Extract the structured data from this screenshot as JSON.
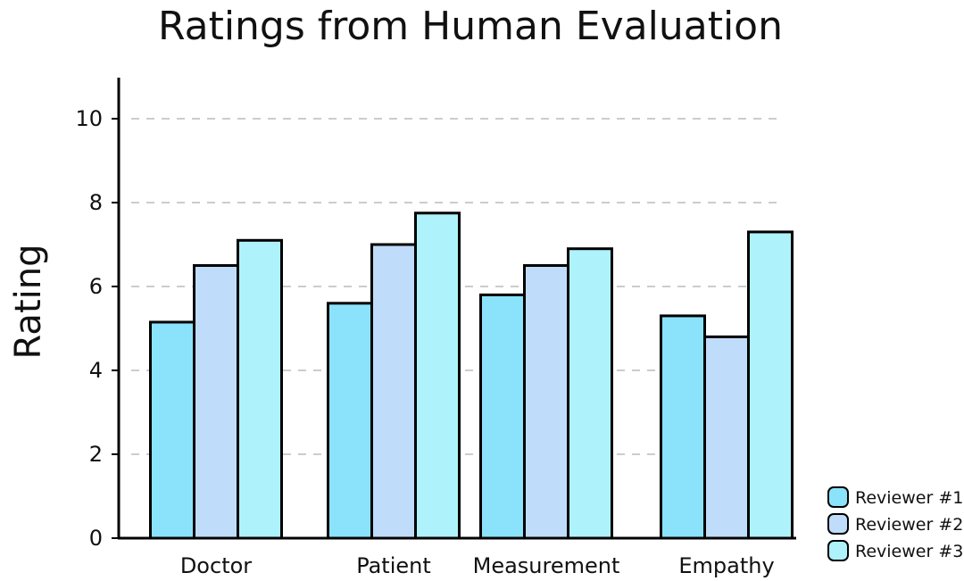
{
  "chart_data": {
    "type": "bar",
    "title": "Ratings from Human Evaluation",
    "xlabel": "",
    "ylabel": "Rating",
    "ylim": [
      0,
      11
    ],
    "yticks": [
      0,
      2,
      4,
      6,
      8,
      10
    ],
    "grid": "horizontal dashed",
    "legend_position": "bottom-right",
    "categories": [
      "Doctor",
      "Patient",
      "Measurement",
      "Empathy"
    ],
    "series": [
      {
        "name": "Reviewer #1",
        "color": "#8be3fb",
        "values": [
          5.15,
          5.6,
          5.8,
          5.3
        ]
      },
      {
        "name": "Reviewer #2",
        "color": "#c0dcfb",
        "values": [
          6.5,
          7.0,
          6.5,
          4.8
        ]
      },
      {
        "name": "Reviewer #3",
        "color": "#aef2fc",
        "values": [
          7.1,
          7.75,
          6.9,
          7.3
        ]
      }
    ]
  }
}
